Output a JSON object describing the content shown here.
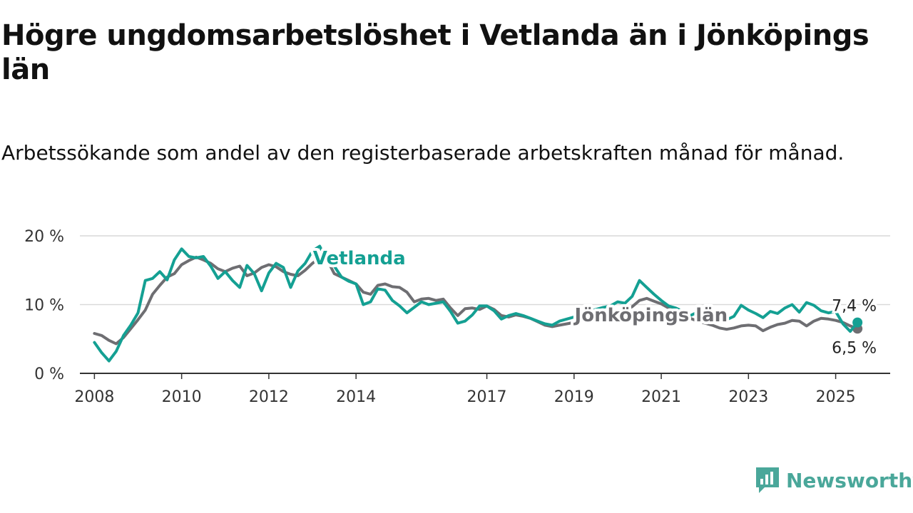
{
  "title": "Högre ungdomsarbetslöshet i Vetlanda än i Jönköpings län",
  "subtitle": "Arbetssökande som andel av den registerbaserade arbetskraften månad för månad.",
  "brand": {
    "name": "Newsworthy",
    "color": "#4aa79a",
    "icon": "bar-chart-logo-icon"
  },
  "chart_data": {
    "type": "line",
    "title": "Högre ungdomsarbetslöshet i Vetlanda än i Jönköpings län",
    "xlabel": "",
    "ylabel": "",
    "ylim": [
      0,
      20
    ],
    "xlim": [
      "2007-09",
      "2026-04"
    ],
    "grid": true,
    "legend": "inline labels",
    "yticks": [
      {
        "value": 0,
        "label": "0 %"
      },
      {
        "value": 10,
        "label": "10 %"
      },
      {
        "value": 20,
        "label": "20 %"
      }
    ],
    "xticks": [
      {
        "value": "2008-01",
        "label": "2008"
      },
      {
        "value": "2010-01",
        "label": "2010"
      },
      {
        "value": "2012-01",
        "label": "2012"
      },
      {
        "value": "2014-01",
        "label": "2014"
      },
      {
        "value": "2017-01",
        "label": "2017"
      },
      {
        "value": "2019-01",
        "label": "2019"
      },
      {
        "value": "2021-01",
        "label": "2021"
      },
      {
        "value": "2023-01",
        "label": "2023"
      },
      {
        "value": "2025-01",
        "label": "2025"
      }
    ],
    "series": [
      {
        "name": "Jönköpings län",
        "color": "#6e6e72",
        "end_label": "6,5 %",
        "label_at": "2019-09",
        "points": [
          [
            "2008-01",
            5.8
          ],
          [
            "2008-03",
            5.5
          ],
          [
            "2008-05",
            4.8
          ],
          [
            "2008-07",
            4.3
          ],
          [
            "2008-09",
            5.2
          ],
          [
            "2008-11",
            6.5
          ],
          [
            "2009-01",
            7.8
          ],
          [
            "2009-03",
            9.2
          ],
          [
            "2009-05",
            11.5
          ],
          [
            "2009-07",
            12.8
          ],
          [
            "2009-09",
            14.0
          ],
          [
            "2009-11",
            14.5
          ],
          [
            "2010-01",
            15.8
          ],
          [
            "2010-03",
            16.4
          ],
          [
            "2010-05",
            16.9
          ],
          [
            "2010-07",
            16.5
          ],
          [
            "2010-09",
            16.0
          ],
          [
            "2010-11",
            15.2
          ],
          [
            "2011-01",
            14.8
          ],
          [
            "2011-03",
            15.3
          ],
          [
            "2011-05",
            15.6
          ],
          [
            "2011-07",
            14.2
          ],
          [
            "2011-09",
            14.6
          ],
          [
            "2011-11",
            15.4
          ],
          [
            "2012-01",
            15.8
          ],
          [
            "2012-03",
            15.5
          ],
          [
            "2012-05",
            14.8
          ],
          [
            "2012-07",
            14.4
          ],
          [
            "2012-09",
            14.2
          ],
          [
            "2012-11",
            15.0
          ],
          [
            "2013-01",
            16.0
          ],
          [
            "2013-03",
            16.8
          ],
          [
            "2013-05",
            16.6
          ],
          [
            "2013-07",
            14.5
          ],
          [
            "2013-09",
            14.0
          ],
          [
            "2013-11",
            13.5
          ],
          [
            "2014-01",
            13.0
          ],
          [
            "2014-03",
            11.8
          ],
          [
            "2014-05",
            11.5
          ],
          [
            "2014-07",
            12.8
          ],
          [
            "2014-09",
            13.0
          ],
          [
            "2014-11",
            12.6
          ],
          [
            "2015-01",
            12.5
          ],
          [
            "2015-03",
            11.8
          ],
          [
            "2015-05",
            10.4
          ],
          [
            "2015-07",
            10.8
          ],
          [
            "2015-09",
            10.9
          ],
          [
            "2015-11",
            10.6
          ],
          [
            "2016-01",
            10.8
          ],
          [
            "2016-03",
            9.5
          ],
          [
            "2016-05",
            8.4
          ],
          [
            "2016-07",
            9.4
          ],
          [
            "2016-09",
            9.5
          ],
          [
            "2016-11",
            9.3
          ],
          [
            "2017-01",
            9.8
          ],
          [
            "2017-03",
            9.3
          ],
          [
            "2017-05",
            8.4
          ],
          [
            "2017-07",
            8.2
          ],
          [
            "2017-09",
            8.5
          ],
          [
            "2017-11",
            8.3
          ],
          [
            "2018-01",
            8.0
          ],
          [
            "2018-03",
            7.5
          ],
          [
            "2018-05",
            7.0
          ],
          [
            "2018-07",
            6.8
          ],
          [
            "2018-09",
            7.0
          ],
          [
            "2018-11",
            7.2
          ],
          [
            "2019-01",
            7.4
          ],
          [
            "2019-03",
            7.6
          ],
          [
            "2019-05",
            7.8
          ],
          [
            "2019-07",
            8.0
          ],
          [
            "2019-09",
            8.2
          ],
          [
            "2019-11",
            8.6
          ],
          [
            "2020-01",
            8.9
          ],
          [
            "2020-03",
            9.2
          ],
          [
            "2020-05",
            9.7
          ],
          [
            "2020-07",
            10.6
          ],
          [
            "2020-09",
            10.9
          ],
          [
            "2020-11",
            10.5
          ],
          [
            "2021-01",
            10.1
          ],
          [
            "2021-03",
            9.5
          ],
          [
            "2021-05",
            9.0
          ],
          [
            "2021-07",
            8.4
          ],
          [
            "2021-09",
            8.0
          ],
          [
            "2021-11",
            7.6
          ],
          [
            "2022-01",
            7.3
          ],
          [
            "2022-03",
            7.0
          ],
          [
            "2022-05",
            6.6
          ],
          [
            "2022-07",
            6.4
          ],
          [
            "2022-09",
            6.6
          ],
          [
            "2022-11",
            6.9
          ],
          [
            "2023-01",
            7.0
          ],
          [
            "2023-03",
            6.9
          ],
          [
            "2023-05",
            6.2
          ],
          [
            "2023-07",
            6.7
          ],
          [
            "2023-09",
            7.1
          ],
          [
            "2023-11",
            7.3
          ],
          [
            "2024-01",
            7.7
          ],
          [
            "2024-03",
            7.6
          ],
          [
            "2024-05",
            6.9
          ],
          [
            "2024-07",
            7.6
          ],
          [
            "2024-09",
            8.0
          ],
          [
            "2024-11",
            7.9
          ],
          [
            "2025-01",
            7.7
          ],
          [
            "2025-03",
            7.4
          ],
          [
            "2025-05",
            6.9
          ],
          [
            "2025-07",
            6.5
          ]
        ]
      },
      {
        "name": "Vetlanda",
        "color": "#14a093",
        "end_label": "7,4 %",
        "label_at": "2013-09",
        "points": [
          [
            "2008-01",
            4.5
          ],
          [
            "2008-03",
            3.0
          ],
          [
            "2008-05",
            1.8
          ],
          [
            "2008-07",
            3.2
          ],
          [
            "2008-09",
            5.5
          ],
          [
            "2008-11",
            7.0
          ],
          [
            "2009-01",
            8.8
          ],
          [
            "2009-03",
            13.5
          ],
          [
            "2009-05",
            13.8
          ],
          [
            "2009-07",
            14.8
          ],
          [
            "2009-09",
            13.6
          ],
          [
            "2009-11",
            16.5
          ],
          [
            "2010-01",
            18.1
          ],
          [
            "2010-03",
            17.0
          ],
          [
            "2010-05",
            16.8
          ],
          [
            "2010-07",
            17.0
          ],
          [
            "2010-09",
            15.6
          ],
          [
            "2010-11",
            13.8
          ],
          [
            "2011-01",
            14.8
          ],
          [
            "2011-03",
            13.5
          ],
          [
            "2011-05",
            12.5
          ],
          [
            "2011-07",
            15.7
          ],
          [
            "2011-09",
            14.5
          ],
          [
            "2011-11",
            12.0
          ],
          [
            "2012-01",
            14.6
          ],
          [
            "2012-03",
            16.0
          ],
          [
            "2012-05",
            15.4
          ],
          [
            "2012-07",
            12.5
          ],
          [
            "2012-09",
            14.9
          ],
          [
            "2012-11",
            16.0
          ],
          [
            "2013-01",
            17.8
          ],
          [
            "2013-03",
            18.5
          ],
          [
            "2013-05",
            16.4
          ],
          [
            "2013-07",
            15.6
          ],
          [
            "2013-09",
            14.0
          ],
          [
            "2013-11",
            13.4
          ],
          [
            "2014-01",
            13.0
          ],
          [
            "2014-03",
            10.0
          ],
          [
            "2014-05",
            10.4
          ],
          [
            "2014-07",
            12.3
          ],
          [
            "2014-09",
            12.1
          ],
          [
            "2014-11",
            10.6
          ],
          [
            "2015-01",
            9.8
          ],
          [
            "2015-03",
            8.8
          ],
          [
            "2015-05",
            9.6
          ],
          [
            "2015-07",
            10.4
          ],
          [
            "2015-09",
            10.0
          ],
          [
            "2015-11",
            10.2
          ],
          [
            "2016-01",
            10.4
          ],
          [
            "2016-03",
            9.0
          ],
          [
            "2016-05",
            7.3
          ],
          [
            "2016-07",
            7.6
          ],
          [
            "2016-09",
            8.5
          ],
          [
            "2016-11",
            9.8
          ],
          [
            "2017-01",
            9.8
          ],
          [
            "2017-03",
            9.1
          ],
          [
            "2017-05",
            7.9
          ],
          [
            "2017-07",
            8.4
          ],
          [
            "2017-09",
            8.7
          ],
          [
            "2017-11",
            8.4
          ],
          [
            "2018-01",
            8.0
          ],
          [
            "2018-03",
            7.6
          ],
          [
            "2018-05",
            7.2
          ],
          [
            "2018-07",
            7.0
          ],
          [
            "2018-09",
            7.6
          ],
          [
            "2018-11",
            7.9
          ],
          [
            "2019-01",
            8.2
          ],
          [
            "2019-03",
            8.7
          ],
          [
            "2019-05",
            9.0
          ],
          [
            "2019-07",
            9.3
          ],
          [
            "2019-09",
            9.6
          ],
          [
            "2019-11",
            9.8
          ],
          [
            "2020-01",
            10.4
          ],
          [
            "2020-03",
            10.2
          ],
          [
            "2020-05",
            11.2
          ],
          [
            "2020-07",
            13.5
          ],
          [
            "2020-09",
            12.5
          ],
          [
            "2020-11",
            11.5
          ],
          [
            "2021-01",
            10.6
          ],
          [
            "2021-03",
            9.8
          ],
          [
            "2021-05",
            9.5
          ],
          [
            "2021-07",
            9.0
          ],
          [
            "2021-09",
            8.4
          ],
          [
            "2021-11",
            8.9
          ],
          [
            "2022-01",
            8.1
          ],
          [
            "2022-03",
            7.6
          ],
          [
            "2022-05",
            7.9
          ],
          [
            "2022-07",
            7.8
          ],
          [
            "2022-09",
            8.3
          ],
          [
            "2022-11",
            9.9
          ],
          [
            "2023-01",
            9.2
          ],
          [
            "2023-03",
            8.7
          ],
          [
            "2023-05",
            8.1
          ],
          [
            "2023-07",
            9.0
          ],
          [
            "2023-09",
            8.7
          ],
          [
            "2023-11",
            9.5
          ],
          [
            "2024-01",
            10.0
          ],
          [
            "2024-03",
            8.9
          ],
          [
            "2024-05",
            10.3
          ],
          [
            "2024-07",
            9.9
          ],
          [
            "2024-09",
            9.1
          ],
          [
            "2024-11",
            8.8
          ],
          [
            "2025-01",
            9.0
          ],
          [
            "2025-03",
            7.2
          ],
          [
            "2025-05",
            6.1
          ],
          [
            "2025-07",
            7.4
          ]
        ]
      }
    ]
  }
}
